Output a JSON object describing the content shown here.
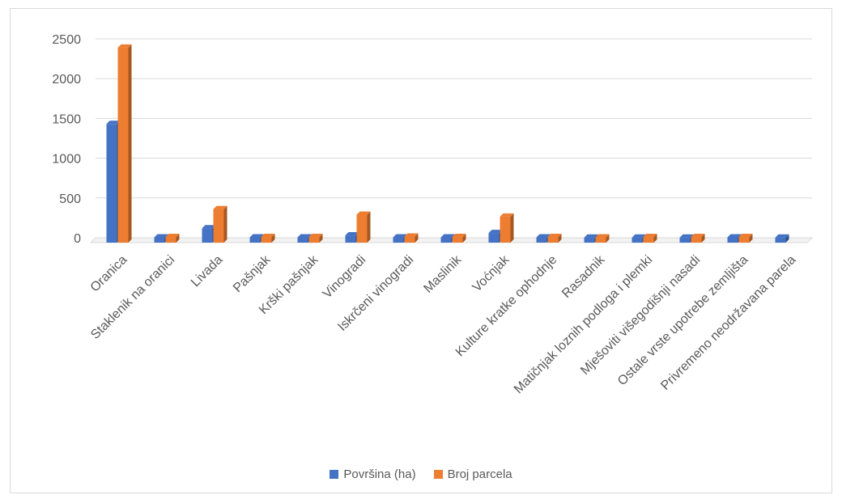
{
  "chart_data": {
    "type": "bar",
    "style": "3d-clustered-column",
    "categories": [
      "Oranica",
      "Staklenik na oranici",
      "Livada",
      "Pašnjak",
      "Krški pašnjak",
      "Vinogradi",
      "Iskrčeni vinogradi",
      "Maslinik",
      "Voćnjak",
      "Kulture kratke ophodnje",
      "Rasadnik",
      "Matičnjak loznih podloga i plemki",
      "Mješoviti višegodišnji nasadi",
      "Ostale vrste upotrebe zemljišta",
      "Privremeno neodržavana parela"
    ],
    "series": [
      {
        "name": "Površina (ha)",
        "color": "#4472c4",
        "values": [
          1430,
          5,
          120,
          5,
          5,
          30,
          5,
          5,
          60,
          5,
          3,
          3,
          3,
          5,
          3
        ]
      },
      {
        "name": "Broj parcela",
        "color": "#ed7d31",
        "values": [
          2390,
          10,
          360,
          10,
          10,
          290,
          15,
          10,
          265,
          10,
          5,
          10,
          10,
          10,
          0
        ]
      }
    ],
    "ylim": [
      0,
      2500
    ],
    "yticks": [
      0,
      500,
      1000,
      1500,
      2000,
      2500
    ],
    "grid": true,
    "legend_position": "bottom"
  }
}
